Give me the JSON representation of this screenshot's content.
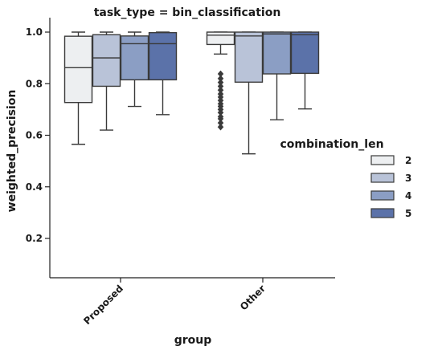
{
  "chart_data": {
    "type": "box",
    "title": "task_type = bin_classification",
    "xlabel": "group",
    "ylabel": "weighted_precision",
    "categories": [
      "Proposed",
      "Other"
    ],
    "ylim": [
      0.0,
      1.05
    ],
    "yticks": [
      0.2,
      0.4,
      0.6,
      0.8,
      1.0
    ],
    "ytick_labels": [
      "0.2",
      "0.4",
      "0.6",
      "0.8",
      "1.0"
    ],
    "grid": false,
    "legend": {
      "title": "combination_len",
      "placement": "right"
    },
    "series": [
      {
        "name": "2",
        "color": "#edeff1",
        "boxes": [
          {
            "category": "Proposed",
            "whislo": 0.565,
            "q1": 0.727,
            "med": 0.862,
            "q3": 0.984,
            "whishi": 1.0,
            "fliers": []
          },
          {
            "category": "Other",
            "whislo": 0.915,
            "q1": 0.952,
            "med": 0.988,
            "q3": 1.0,
            "whishi": 1.0,
            "fliers": [
              0.632,
              0.648,
              0.664,
              0.672,
              0.688,
              0.7,
              0.712,
              0.722,
              0.735,
              0.748,
              0.76,
              0.775,
              0.79,
              0.805,
              0.82,
              0.838
            ]
          }
        ]
      },
      {
        "name": "3",
        "color": "#b9c3d8",
        "boxes": [
          {
            "category": "Proposed",
            "whislo": 0.62,
            "q1": 0.79,
            "med": 0.9,
            "q3": 0.99,
            "whishi": 1.0,
            "fliers": []
          },
          {
            "category": "Other",
            "whislo": 0.528,
            "q1": 0.806,
            "med": 0.985,
            "q3": 1.0,
            "whishi": 1.0,
            "fliers": []
          }
        ]
      },
      {
        "name": "4",
        "color": "#8b9ec4",
        "boxes": [
          {
            "category": "Proposed",
            "whislo": 0.712,
            "q1": 0.815,
            "med": 0.955,
            "q3": 0.985,
            "whishi": 1.0,
            "fliers": []
          },
          {
            "category": "Other",
            "whislo": 0.66,
            "q1": 0.838,
            "med": 0.993,
            "q3": 1.0,
            "whishi": 1.0,
            "fliers": []
          }
        ]
      },
      {
        "name": "5",
        "color": "#5b72a9",
        "boxes": [
          {
            "category": "Proposed",
            "whislo": 0.68,
            "q1": 0.815,
            "med": 0.955,
            "q3": 0.998,
            "whishi": 1.0,
            "fliers": []
          },
          {
            "category": "Other",
            "whislo": 0.702,
            "q1": 0.84,
            "med": 0.99,
            "q3": 1.0,
            "whishi": 1.0,
            "fliers": []
          }
        ]
      }
    ]
  }
}
